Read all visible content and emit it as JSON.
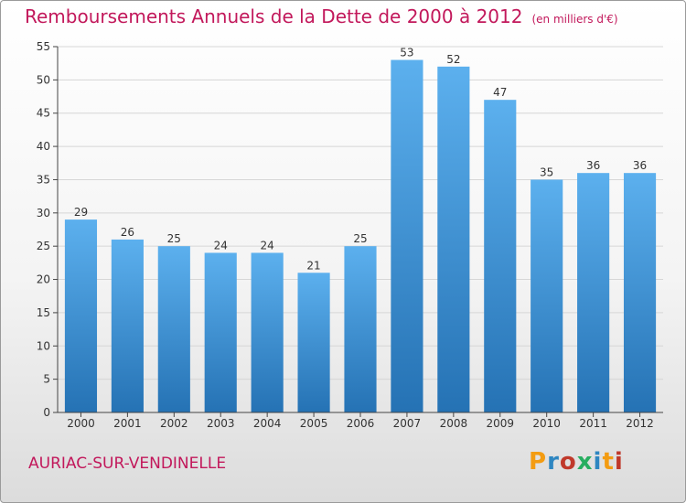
{
  "title": "Remboursements Annuels de la Dette de 2000 à 2012",
  "unit": "(en milliers d'€)",
  "commune": "AURIAC-SUR-VENDINELLE",
  "logo": {
    "letters": [
      "P",
      "r",
      "o",
      "x",
      "i",
      "t",
      "i"
    ],
    "colors": [
      "#f39c12",
      "#2e86c1",
      "#c0392b",
      "#27ae60",
      "#2e86c1",
      "#f39c12",
      "#c0392b"
    ]
  },
  "chart_data": {
    "type": "bar",
    "categories": [
      "2000",
      "2001",
      "2002",
      "2003",
      "2004",
      "2005",
      "2006",
      "2007",
      "2008",
      "2009",
      "2010",
      "2011",
      "2012"
    ],
    "values": [
      29,
      26,
      25,
      24,
      24,
      21,
      25,
      53,
      52,
      47,
      35,
      36,
      36
    ],
    "data_labels": [
      "29",
      "26",
      "25",
      "24",
      "24",
      "21",
      "25",
      "53",
      "52",
      "47",
      "35",
      "36",
      "36"
    ],
    "ylim": [
      0,
      55
    ],
    "yticks": [
      0,
      5,
      10,
      15,
      20,
      25,
      30,
      35,
      40,
      45,
      50,
      55
    ],
    "ytick_labels": [
      "0",
      "5",
      "10",
      "15",
      "20",
      "25",
      "30",
      "35",
      "40",
      "45",
      "50",
      "55"
    ],
    "grid": true,
    "bar_color": "#3f92d2"
  }
}
